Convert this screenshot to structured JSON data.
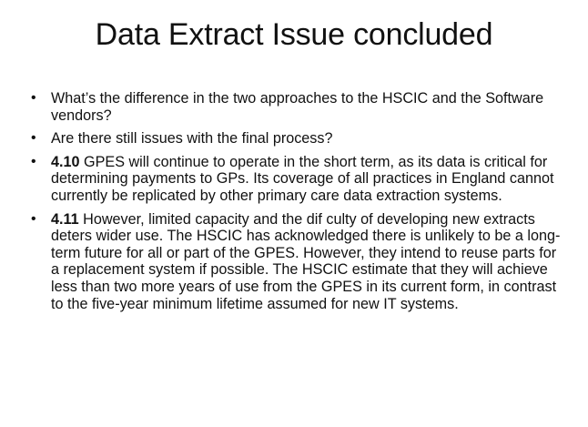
{
  "slide": {
    "title": "Data Extract Issue concluded",
    "bullet_glyph": "•",
    "bullets": [
      {
        "number": "",
        "text": "What’s the difference in the two approaches to the HSCIC and the Software vendors?"
      },
      {
        "number": "",
        "text": "Are there still issues with the final process?"
      },
      {
        "number": "4.10",
        "text": " GPES will continue to operate in the short term, as its data is critical for determining payments to GPs. Its coverage of all practices in England cannot currently be replicated by other primary care data extraction systems."
      },
      {
        "number": "4.11",
        "text": " However, limited capacity and the dif culty of developing new extracts deters wider use. The HSCIC has acknowledged there is unlikely to be a long-term future for all or part of the GPES. However, they intend to reuse parts for a replacement system if possible. The HSCIC estimate that they will achieve less than two more years of use from the GPES in its current form, in contrast to the five-year minimum lifetime assumed for new IT systems."
      }
    ]
  }
}
